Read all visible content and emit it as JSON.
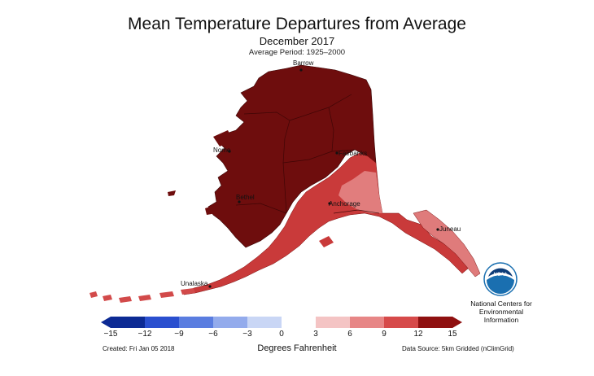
{
  "header": {
    "title": "Mean Temperature Departures from Average",
    "subtitle": "December 2017",
    "period": "Average Period: 1925–2000"
  },
  "map": {
    "region": "Alaska",
    "cities": [
      {
        "name": "Barrow"
      },
      {
        "name": "Nome"
      },
      {
        "name": "Fairbanks"
      },
      {
        "name": "Bethel"
      },
      {
        "name": "Anchorage"
      },
      {
        "name": "Juneau"
      },
      {
        "name": "Unalaska"
      }
    ]
  },
  "legend": {
    "ticks": [
      "−15",
      "−12",
      "−9",
      "−6",
      "−3",
      "0",
      "3",
      "6",
      "9",
      "12",
      "15"
    ],
    "colors": [
      "#0c2a94",
      "#2a4fcf",
      "#5a7de0",
      "#93abec",
      "#c9d6f5",
      "#ffffff",
      "#f4c4c4",
      "#e78686",
      "#d64a4a",
      "#b92323",
      "#8f1010"
    ],
    "units": "Degrees Fahrenheit"
  },
  "footer": {
    "created": "Created: Fri Jan 05 2018",
    "source": "Data Source: 5km Gridded (nClimGrid)"
  },
  "agency": {
    "logo_text": "NOAA",
    "line1": "National Centers for",
    "line2": "Environmental",
    "line3": "Information"
  }
}
